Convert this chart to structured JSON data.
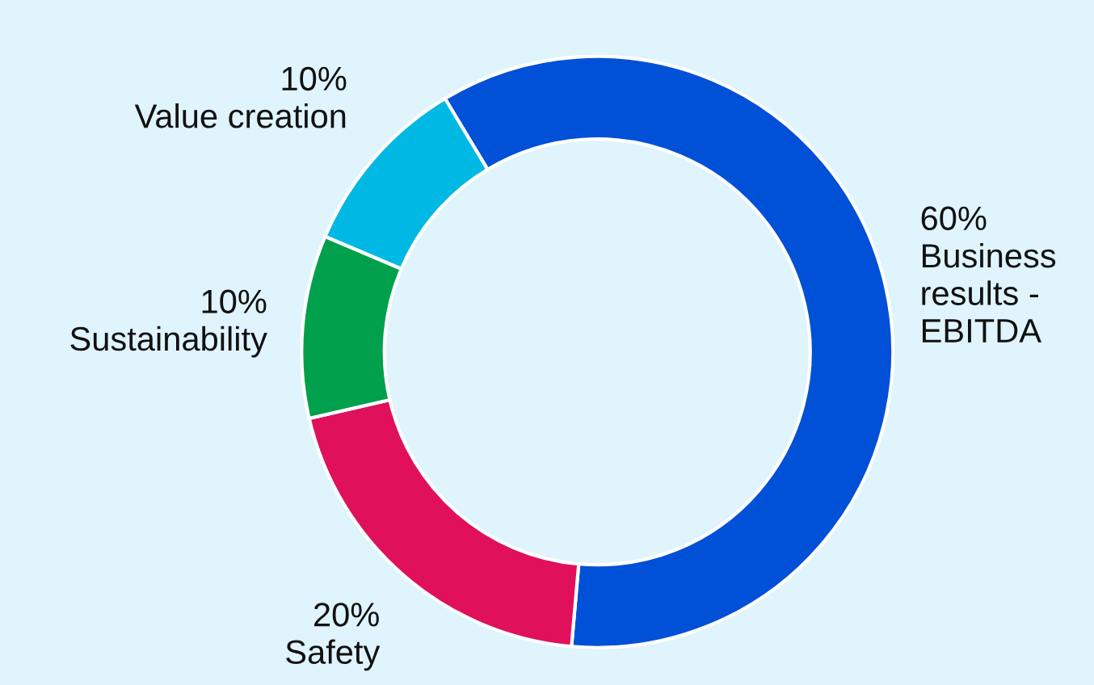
{
  "chart_data": {
    "type": "donut",
    "categories": [
      "Business results - EBITDA",
      "Safety",
      "Sustainability",
      "Value creation"
    ],
    "values": [
      60,
      20,
      10,
      10
    ],
    "value_labels": [
      "60%",
      "20%",
      "10%",
      "10%"
    ],
    "colors": [
      "#0050d8",
      "#e0105a",
      "#00a04c",
      "#00b8e4"
    ],
    "legend": false
  }
}
